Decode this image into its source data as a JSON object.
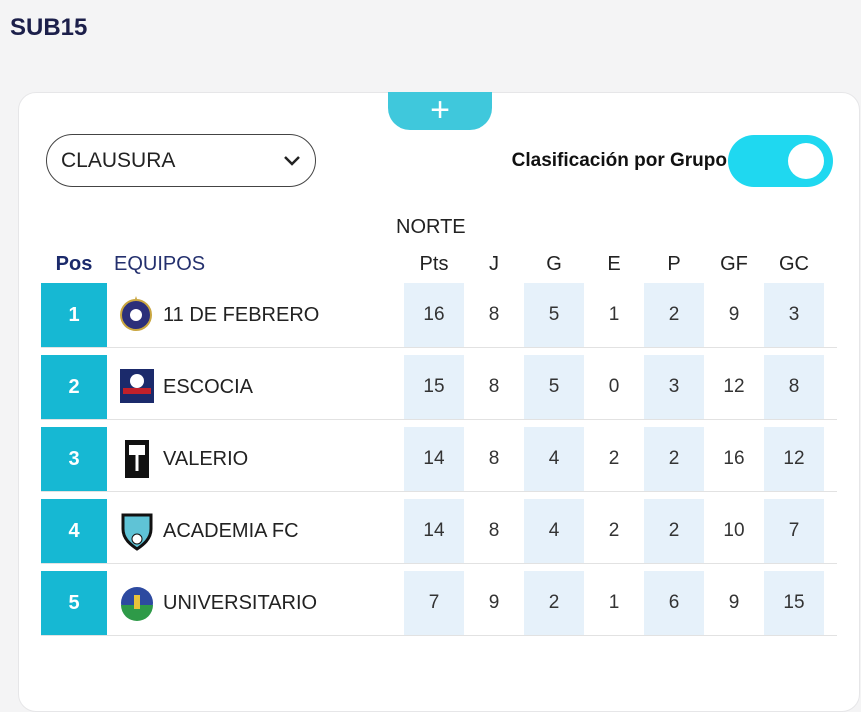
{
  "title": "SUB15",
  "filter": {
    "selected": "CLAUSURA",
    "toggle_label": "Clasificación por Grupo",
    "toggle_on": true
  },
  "add_label": "+",
  "group": "NORTE",
  "headers": {
    "pos": "Pos",
    "team": "EQUIPOS",
    "cols": [
      "Pts",
      "J",
      "G",
      "E",
      "P",
      "GF",
      "GC"
    ]
  },
  "rows": [
    {
      "pos": "1",
      "team": "11 DE FEBRERO",
      "logo": "11-de-febrero-crest",
      "stats": [
        "16",
        "8",
        "5",
        "1",
        "2",
        "9",
        "3"
      ]
    },
    {
      "pos": "2",
      "team": "ESCOCIA",
      "logo": "escocia-crest",
      "stats": [
        "15",
        "8",
        "5",
        "0",
        "3",
        "12",
        "8"
      ]
    },
    {
      "pos": "3",
      "team": "VALERIO",
      "logo": "valerio-crest",
      "stats": [
        "14",
        "8",
        "4",
        "2",
        "2",
        "16",
        "12"
      ]
    },
    {
      "pos": "4",
      "team": "ACADEMIA FC",
      "logo": "academia-fc-crest",
      "stats": [
        "14",
        "8",
        "4",
        "2",
        "2",
        "10",
        "7"
      ]
    },
    {
      "pos": "5",
      "team": "UNIVERSITARIO",
      "logo": "universitario-crest",
      "stats": [
        "7",
        "9",
        "2",
        "1",
        "6",
        "9",
        "15"
      ]
    }
  ],
  "colors": {
    "accent": "#16b8d3",
    "toggle": "#1fd8f0",
    "title": "#1c1f4a"
  }
}
